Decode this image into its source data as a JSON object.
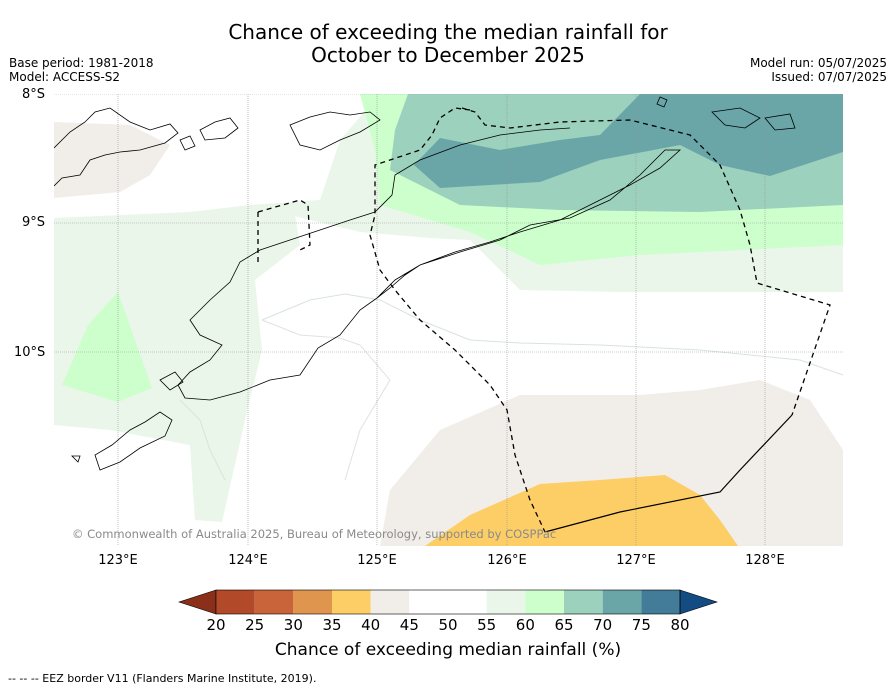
{
  "title_line1": "Chance of exceeding the median rainfall for",
  "title_line2": "October to December 2025",
  "base_period": "Base period: 1981-2018",
  "model": "Model: ACCESS-S2",
  "model_run": "Model run: 05/07/2025",
  "issued": "Issued: 07/07/2025",
  "lat_labels": [
    "8°S",
    "9°S",
    "10°S"
  ],
  "lon_labels": [
    "123°E",
    "124°E",
    "125°E",
    "126°E",
    "127°E",
    "128°E"
  ],
  "copyright": "© Commonwealth of Australia 2025, Bureau of Meteorology, supported by COSPPac",
  "colorbar": {
    "ticks": [
      "20",
      "25",
      "30",
      "35",
      "40",
      "45",
      "50",
      "55",
      "60",
      "65",
      "70",
      "75",
      "80"
    ],
    "colors": [
      "#8b2f1b",
      "#b24a2a",
      "#c9643a",
      "#e0954f",
      "#fdcd66",
      "#f1ede8",
      "#ffffff",
      "#ffffff",
      "#eaf6ea",
      "#ccffcc",
      "#9bd1bd",
      "#6aa6a8",
      "#437c98",
      "#134b83"
    ],
    "label": "Chance of exceeding median rainfall (%)"
  },
  "footnote": "--  --  -- EEZ border V11 (Flanders Marine Institute, 2019)."
}
